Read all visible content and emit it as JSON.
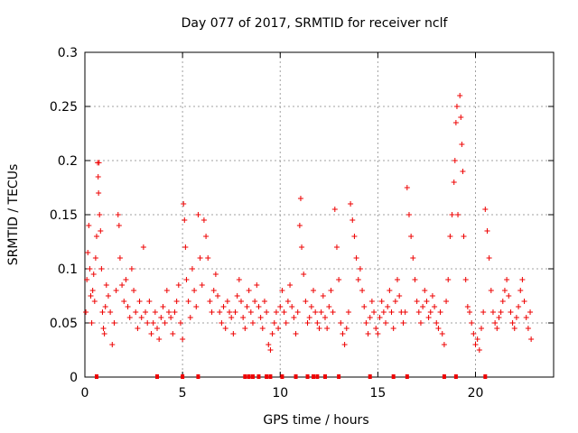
{
  "chart_data": {
    "type": "scatter",
    "title": "Day 077 of 2017, SRMTID for receiver nclf",
    "xlabel": "GPS time / hours",
    "ylabel": "SRMTID / TECUs",
    "xlim": [
      0,
      24
    ],
    "ylim": [
      0,
      0.3
    ],
    "x_ticks": [
      "0",
      "5",
      "10",
      "15",
      "20"
    ],
    "x_tick_values": [
      0,
      5,
      10,
      15,
      20
    ],
    "y_ticks": [
      "0",
      "0.05",
      "0.1",
      "0.15",
      "0.2",
      "0.25",
      "0.3"
    ],
    "y_tick_values": [
      0,
      0.05,
      0.1,
      0.15,
      0.2,
      0.25,
      0.3
    ],
    "grid": true,
    "marker": "+",
    "color": "#ee0000",
    "series": [
      {
        "points": [
          [
            0.05,
            0.06
          ],
          [
            0.1,
            0.09
          ],
          [
            0.15,
            0.115
          ],
          [
            0.2,
            0.14
          ],
          [
            0.25,
            0.1
          ],
          [
            0.3,
            0.075
          ],
          [
            0.35,
            0.05
          ],
          [
            0.4,
            0.08
          ],
          [
            0.45,
            0.095
          ],
          [
            0.5,
            0.07
          ],
          [
            0.55,
            0.11
          ],
          [
            0.6,
            0.13
          ],
          [
            0.65,
            0.198
          ],
          [
            0.68,
            0.185
          ],
          [
            0.7,
            0.17
          ],
          [
            0.72,
            0.198
          ],
          [
            0.75,
            0.15
          ],
          [
            0.8,
            0.135
          ],
          [
            0.85,
            0.1
          ],
          [
            0.9,
            0.06
          ],
          [
            0.95,
            0.045
          ],
          [
            1.0,
            0.04
          ],
          [
            1.05,
            0.065
          ],
          [
            1.1,
            0.085
          ],
          [
            1.2,
            0.075
          ],
          [
            1.3,
            0.06
          ],
          [
            1.4,
            0.03
          ],
          [
            1.5,
            0.05
          ],
          [
            1.6,
            0.08
          ],
          [
            1.7,
            0.15
          ],
          [
            1.75,
            0.14
          ],
          [
            1.8,
            0.11
          ],
          [
            1.9,
            0.085
          ],
          [
            2.0,
            0.07
          ],
          [
            2.1,
            0.09
          ],
          [
            2.2,
            0.065
          ],
          [
            2.3,
            0.055
          ],
          [
            2.4,
            0.1
          ],
          [
            2.5,
            0.08
          ],
          [
            2.6,
            0.06
          ],
          [
            2.7,
            0.045
          ],
          [
            2.8,
            0.07
          ],
          [
            2.9,
            0.055
          ],
          [
            3.0,
            0.12
          ],
          [
            3.1,
            0.06
          ],
          [
            3.2,
            0.05
          ],
          [
            3.3,
            0.07
          ],
          [
            3.4,
            0.04
          ],
          [
            3.5,
            0.05
          ],
          [
            3.6,
            0.06
          ],
          [
            3.7,
            0.045
          ],
          [
            3.8,
            0.035
          ],
          [
            3.9,
            0.055
          ],
          [
            4.0,
            0.065
          ],
          [
            4.1,
            0.05
          ],
          [
            4.2,
            0.08
          ],
          [
            4.3,
            0.06
          ],
          [
            4.4,
            0.055
          ],
          [
            4.5,
            0.04
          ],
          [
            4.6,
            0.06
          ],
          [
            4.7,
            0.07
          ],
          [
            4.8,
            0.085
          ],
          [
            4.9,
            0.05
          ],
          [
            5.0,
            0.035
          ],
          [
            5.05,
            0.16
          ],
          [
            5.1,
            0.145
          ],
          [
            5.15,
            0.12
          ],
          [
            5.2,
            0.09
          ],
          [
            5.3,
            0.07
          ],
          [
            5.4,
            0.055
          ],
          [
            5.5,
            0.1
          ],
          [
            5.6,
            0.08
          ],
          [
            5.7,
            0.065
          ],
          [
            5.8,
            0.15
          ],
          [
            5.9,
            0.11
          ],
          [
            6.0,
            0.085
          ],
          [
            6.1,
            0.145
          ],
          [
            6.2,
            0.13
          ],
          [
            6.3,
            0.11
          ],
          [
            6.4,
            0.07
          ],
          [
            6.5,
            0.06
          ],
          [
            6.6,
            0.08
          ],
          [
            6.7,
            0.095
          ],
          [
            6.8,
            0.075
          ],
          [
            6.9,
            0.06
          ],
          [
            7.0,
            0.05
          ],
          [
            7.1,
            0.065
          ],
          [
            7.2,
            0.045
          ],
          [
            7.3,
            0.07
          ],
          [
            7.4,
            0.06
          ],
          [
            7.5,
            0.055
          ],
          [
            7.6,
            0.04
          ],
          [
            7.7,
            0.06
          ],
          [
            7.8,
            0.075
          ],
          [
            7.9,
            0.09
          ],
          [
            8.0,
            0.07
          ],
          [
            8.1,
            0.055
          ],
          [
            8.2,
            0.045
          ],
          [
            8.3,
            0.065
          ],
          [
            8.4,
            0.08
          ],
          [
            8.5,
            0.06
          ],
          [
            8.6,
            0.05
          ],
          [
            8.7,
            0.07
          ],
          [
            8.8,
            0.085
          ],
          [
            8.9,
            0.065
          ],
          [
            9.0,
            0.055
          ],
          [
            9.1,
            0.045
          ],
          [
            9.2,
            0.07
          ],
          [
            9.3,
            0.06
          ],
          [
            9.4,
            0.03
          ],
          [
            9.5,
            0.025
          ],
          [
            9.6,
            0.04
          ],
          [
            9.7,
            0.05
          ],
          [
            9.8,
            0.06
          ],
          [
            9.9,
            0.045
          ],
          [
            10.0,
            0.065
          ],
          [
            10.1,
            0.08
          ],
          [
            10.2,
            0.06
          ],
          [
            10.3,
            0.05
          ],
          [
            10.4,
            0.07
          ],
          [
            10.5,
            0.085
          ],
          [
            10.6,
            0.065
          ],
          [
            10.7,
            0.055
          ],
          [
            10.8,
            0.04
          ],
          [
            10.9,
            0.06
          ],
          [
            11.0,
            0.14
          ],
          [
            11.05,
            0.165
          ],
          [
            11.1,
            0.12
          ],
          [
            11.2,
            0.095
          ],
          [
            11.3,
            0.07
          ],
          [
            11.4,
            0.05
          ],
          [
            11.5,
            0.055
          ],
          [
            11.6,
            0.065
          ],
          [
            11.7,
            0.08
          ],
          [
            11.8,
            0.06
          ],
          [
            11.9,
            0.05
          ],
          [
            12.0,
            0.045
          ],
          [
            12.1,
            0.06
          ],
          [
            12.2,
            0.075
          ],
          [
            12.3,
            0.055
          ],
          [
            12.4,
            0.045
          ],
          [
            12.5,
            0.065
          ],
          [
            12.6,
            0.08
          ],
          [
            12.7,
            0.06
          ],
          [
            12.8,
            0.155
          ],
          [
            12.9,
            0.12
          ],
          [
            13.0,
            0.09
          ],
          [
            13.1,
            0.05
          ],
          [
            13.2,
            0.04
          ],
          [
            13.3,
            0.03
          ],
          [
            13.4,
            0.045
          ],
          [
            13.5,
            0.06
          ],
          [
            13.6,
            0.16
          ],
          [
            13.7,
            0.145
          ],
          [
            13.8,
            0.13
          ],
          [
            13.9,
            0.11
          ],
          [
            14.0,
            0.09
          ],
          [
            14.1,
            0.1
          ],
          [
            14.2,
            0.08
          ],
          [
            14.3,
            0.065
          ],
          [
            14.4,
            0.05
          ],
          [
            14.5,
            0.04
          ],
          [
            14.6,
            0.055
          ],
          [
            14.7,
            0.07
          ],
          [
            14.8,
            0.06
          ],
          [
            14.9,
            0.045
          ],
          [
            15.0,
            0.04
          ],
          [
            15.1,
            0.055
          ],
          [
            15.2,
            0.07
          ],
          [
            15.3,
            0.06
          ],
          [
            15.4,
            0.05
          ],
          [
            15.5,
            0.065
          ],
          [
            15.6,
            0.08
          ],
          [
            15.7,
            0.06
          ],
          [
            15.8,
            0.045
          ],
          [
            15.9,
            0.07
          ],
          [
            16.0,
            0.09
          ],
          [
            16.1,
            0.075
          ],
          [
            16.2,
            0.06
          ],
          [
            16.3,
            0.05
          ],
          [
            16.4,
            0.06
          ],
          [
            16.5,
            0.175
          ],
          [
            16.6,
            0.15
          ],
          [
            16.7,
            0.13
          ],
          [
            16.8,
            0.11
          ],
          [
            16.9,
            0.09
          ],
          [
            17.0,
            0.07
          ],
          [
            17.1,
            0.06
          ],
          [
            17.2,
            0.05
          ],
          [
            17.3,
            0.065
          ],
          [
            17.4,
            0.08
          ],
          [
            17.5,
            0.07
          ],
          [
            17.6,
            0.055
          ],
          [
            17.7,
            0.06
          ],
          [
            17.8,
            0.075
          ],
          [
            17.9,
            0.065
          ],
          [
            18.0,
            0.05
          ],
          [
            18.1,
            0.045
          ],
          [
            18.2,
            0.06
          ],
          [
            18.3,
            0.04
          ],
          [
            18.4,
            0.03
          ],
          [
            18.5,
            0.07
          ],
          [
            18.6,
            0.09
          ],
          [
            18.7,
            0.13
          ],
          [
            18.8,
            0.15
          ],
          [
            18.9,
            0.18
          ],
          [
            18.95,
            0.2
          ],
          [
            19.0,
            0.235
          ],
          [
            19.05,
            0.25
          ],
          [
            19.1,
            0.15
          ],
          [
            19.2,
            0.26
          ],
          [
            19.25,
            0.24
          ],
          [
            19.3,
            0.215
          ],
          [
            19.35,
            0.19
          ],
          [
            19.4,
            0.13
          ],
          [
            19.5,
            0.09
          ],
          [
            19.6,
            0.065
          ],
          [
            19.7,
            0.06
          ],
          [
            19.8,
            0.05
          ],
          [
            19.9,
            0.04
          ],
          [
            20.0,
            0.03
          ],
          [
            20.1,
            0.035
          ],
          [
            20.2,
            0.025
          ],
          [
            20.3,
            0.045
          ],
          [
            20.4,
            0.06
          ],
          [
            20.5,
            0.155
          ],
          [
            20.6,
            0.135
          ],
          [
            20.7,
            0.11
          ],
          [
            20.8,
            0.08
          ],
          [
            20.9,
            0.06
          ],
          [
            21.0,
            0.05
          ],
          [
            21.1,
            0.045
          ],
          [
            21.2,
            0.055
          ],
          [
            21.3,
            0.06
          ],
          [
            21.4,
            0.07
          ],
          [
            21.5,
            0.08
          ],
          [
            21.6,
            0.09
          ],
          [
            21.7,
            0.075
          ],
          [
            21.8,
            0.06
          ],
          [
            21.9,
            0.05
          ],
          [
            22.0,
            0.045
          ],
          [
            22.1,
            0.055
          ],
          [
            22.2,
            0.065
          ],
          [
            22.3,
            0.08
          ],
          [
            22.4,
            0.09
          ],
          [
            22.5,
            0.07
          ],
          [
            22.6,
            0.055
          ],
          [
            22.7,
            0.045
          ],
          [
            22.8,
            0.06
          ],
          [
            22.85,
            0.035
          ]
        ]
      }
    ],
    "rug_x": [
      0.6,
      3.7,
      5.0,
      5.8,
      8.2,
      8.4,
      8.6,
      8.9,
      9.3,
      9.5,
      10.1,
      10.8,
      11.4,
      11.7,
      11.9,
      12.3,
      13.0,
      14.6,
      15.8,
      16.5,
      18.4,
      19.0,
      20.5
    ]
  }
}
